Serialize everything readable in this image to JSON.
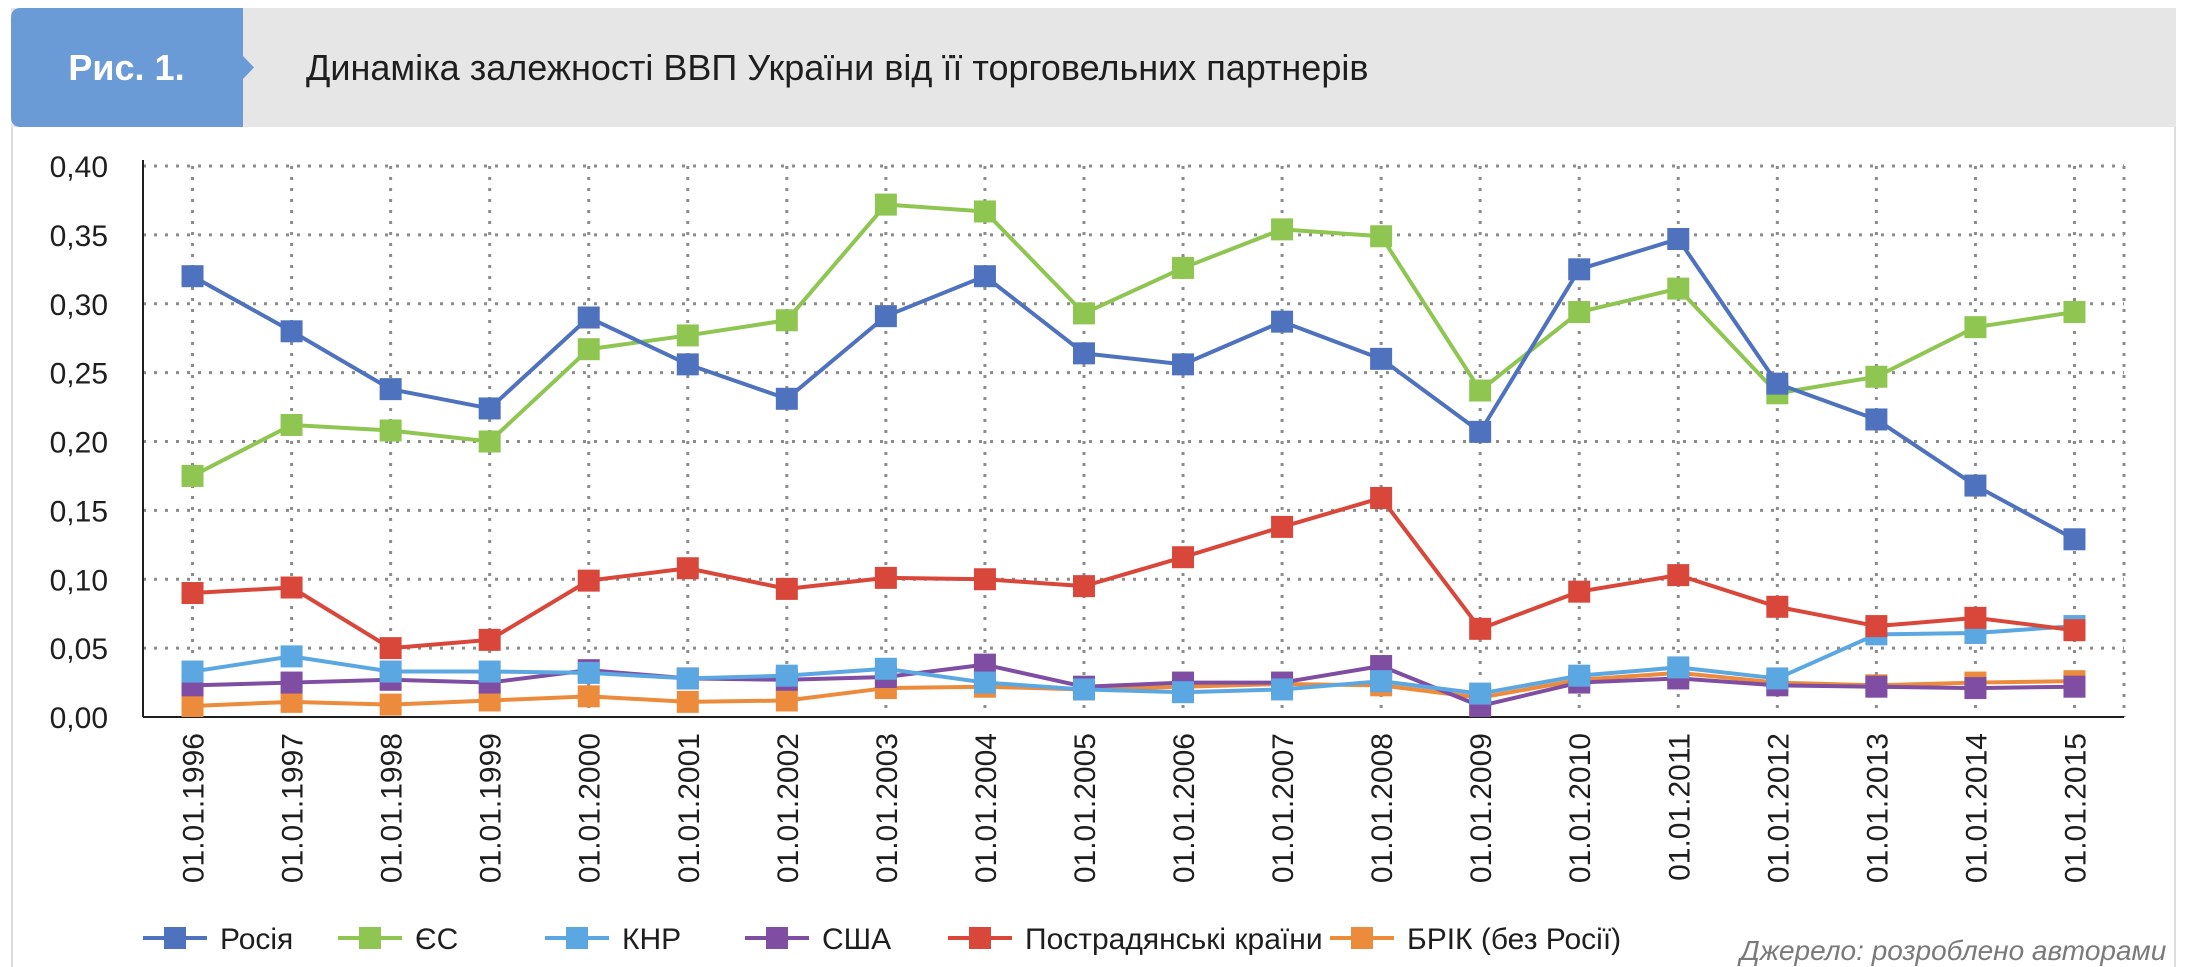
{
  "header": {
    "badge_label": "Рис. 1.",
    "title": "Динаміка залежності ВВП України від її торговельних партнерів",
    "badge_color": "#6b9bd6"
  },
  "source": "Джерело: розроблено авторами",
  "chart_data": {
    "type": "line",
    "title": "",
    "xlabel": "",
    "ylabel": "",
    "ylim": [
      0,
      0.4
    ],
    "yticks": [
      "0,00",
      "0,05",
      "0,10",
      "0,15",
      "0,20",
      "0,25",
      "0,30",
      "0,35",
      "0,40"
    ],
    "grid": true,
    "legend_position": "bottom",
    "categories": [
      "01.01.1996",
      "01.01.1997",
      "01.01.1998",
      "01.01.1999",
      "01.01.2000",
      "01.01.2001",
      "01.01.2002",
      "01.01.2003",
      "01.01.2004",
      "01.01.2005",
      "01.01.2006",
      "01.01.2007",
      "01.01.2008",
      "01.01.2009",
      "01.01.2010",
      "01.01.2011",
      "01.01.2012",
      "01.01.2013",
      "01.01.2014",
      "01.01.2015"
    ],
    "series": [
      {
        "name": "Росія",
        "color": "#4f72be",
        "values": [
          0.32,
          0.28,
          0.238,
          0.224,
          0.29,
          0.256,
          0.231,
          0.291,
          0.32,
          0.264,
          0.256,
          0.287,
          0.26,
          0.207,
          0.325,
          0.347,
          0.242,
          0.216,
          0.168,
          0.129
        ]
      },
      {
        "name": "ЄС",
        "color": "#8ec651",
        "values": [
          0.175,
          0.212,
          0.208,
          0.2,
          0.267,
          0.277,
          0.288,
          0.372,
          0.367,
          0.293,
          0.326,
          0.354,
          0.349,
          0.237,
          0.294,
          0.311,
          0.235,
          0.247,
          0.283,
          0.294
        ]
      },
      {
        "name": "КНР",
        "color": "#5ba7e2",
        "values": [
          0.033,
          0.044,
          0.033,
          0.033,
          0.032,
          0.028,
          0.03,
          0.035,
          0.025,
          0.02,
          0.018,
          0.02,
          0.026,
          0.017,
          0.03,
          0.036,
          0.028,
          0.06,
          0.061,
          0.066
        ]
      },
      {
        "name": "США",
        "color": "#7f4ea3",
        "values": [
          0.023,
          0.025,
          0.027,
          0.025,
          0.034,
          0.028,
          0.027,
          0.029,
          0.038,
          0.022,
          0.025,
          0.025,
          0.037,
          0.008,
          0.025,
          0.028,
          0.023,
          0.022,
          0.021,
          0.022
        ]
      },
      {
        "name": "Пострадянські країни",
        "color": "#d9473a",
        "values": [
          0.09,
          0.094,
          0.05,
          0.056,
          0.099,
          0.108,
          0.093,
          0.101,
          0.1,
          0.095,
          0.116,
          0.138,
          0.159,
          0.064,
          0.091,
          0.103,
          0.08,
          0.066,
          0.072,
          0.063
        ]
      },
      {
        "name": "БРІК (без Росії)",
        "color": "#ec8b3c",
        "values": [
          0.008,
          0.011,
          0.009,
          0.012,
          0.015,
          0.011,
          0.012,
          0.021,
          0.022,
          0.02,
          0.022,
          0.024,
          0.023,
          0.014,
          0.027,
          0.032,
          0.025,
          0.023,
          0.025,
          0.026
        ]
      }
    ]
  }
}
